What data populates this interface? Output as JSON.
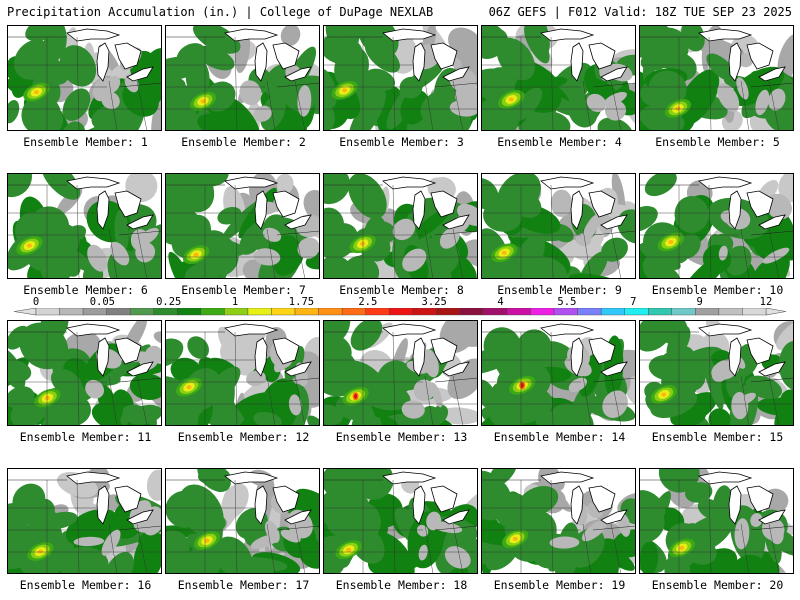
{
  "header": {
    "left": "Precipitation Accumulation (in.) | College of DuPage NEXLAB",
    "right": "06Z GEFS | F012 Valid: 18Z TUE SEP 23 2025"
  },
  "colorbar": {
    "tick_labels": [
      "0",
      "0.05",
      "0.25",
      "1",
      "1.75",
      "2.5",
      "3.25",
      "4",
      "5.5",
      "7",
      "9",
      "12"
    ],
    "colors": [
      "#d4d4d4",
      "#b8b8b8",
      "#9c9c9c",
      "#808080",
      "#4f9a4f",
      "#2e8b2e",
      "#118211",
      "#3caa14",
      "#8ccf14",
      "#e6f014",
      "#ffd414",
      "#ffb414",
      "#ff9014",
      "#ff6a14",
      "#ff3a14",
      "#ee1414",
      "#cc1414",
      "#a81414",
      "#8a1040",
      "#a0106a",
      "#cc10a4",
      "#ee20e6",
      "#b050f0",
      "#7a80f8",
      "#30c8f8",
      "#20eef0",
      "#30c8b0",
      "#70c8c8",
      "#a0a0a0",
      "#c0c0c0",
      "#d8d8d8"
    ]
  },
  "panels": [
    {
      "label": "Ensemble Member: 1"
    },
    {
      "label": "Ensemble Member: 2"
    },
    {
      "label": "Ensemble Member: 3"
    },
    {
      "label": "Ensemble Member: 4"
    },
    {
      "label": "Ensemble Member: 5"
    },
    {
      "label": "Ensemble Member: 6"
    },
    {
      "label": "Ensemble Member: 7"
    },
    {
      "label": "Ensemble Member: 8"
    },
    {
      "label": "Ensemble Member: 9"
    },
    {
      "label": "Ensemble Member: 10"
    },
    {
      "label": "Ensemble Member: 11"
    },
    {
      "label": "Ensemble Member: 12"
    },
    {
      "label": "Ensemble Member: 13"
    },
    {
      "label": "Ensemble Member: 14"
    },
    {
      "label": "Ensemble Member: 15"
    },
    {
      "label": "Ensemble Member: 16"
    },
    {
      "label": "Ensemble Member: 17"
    },
    {
      "label": "Ensemble Member: 18"
    },
    {
      "label": "Ensemble Member: 19"
    },
    {
      "label": "Ensemble Member: 20"
    }
  ]
}
